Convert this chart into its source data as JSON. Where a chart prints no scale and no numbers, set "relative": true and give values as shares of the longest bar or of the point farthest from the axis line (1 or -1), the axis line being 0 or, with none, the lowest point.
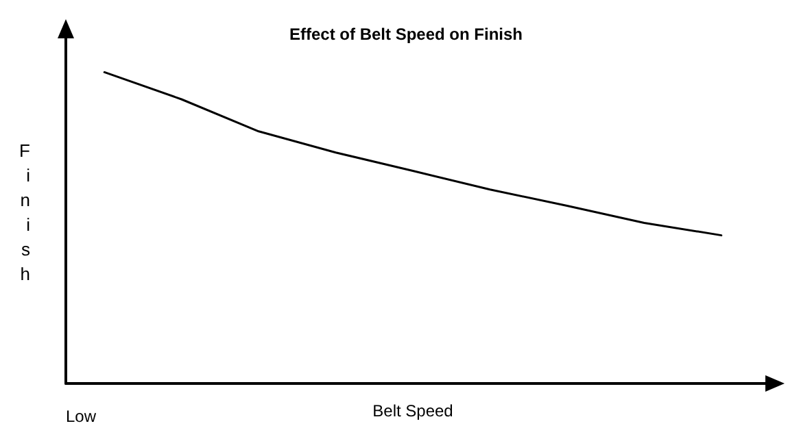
{
  "chart_data": {
    "type": "line",
    "title": "Effect of Belt Speed on Finish",
    "xlabel": "Belt Speed",
    "ylabel": "Finish",
    "annotations": [
      "Low"
    ],
    "relative": true,
    "categories": [
      null,
      null,
      null,
      null,
      null,
      null,
      null,
      null,
      null
    ],
    "series": [
      {
        "color": "#000000",
        "values": [
          1,
          0.913,
          0.81,
          0.742,
          0.683,
          0.623,
          0.571,
          0.516,
          0.476
        ]
      }
    ],
    "grid": false,
    "marker": "none",
    "line_style": "solid"
  }
}
